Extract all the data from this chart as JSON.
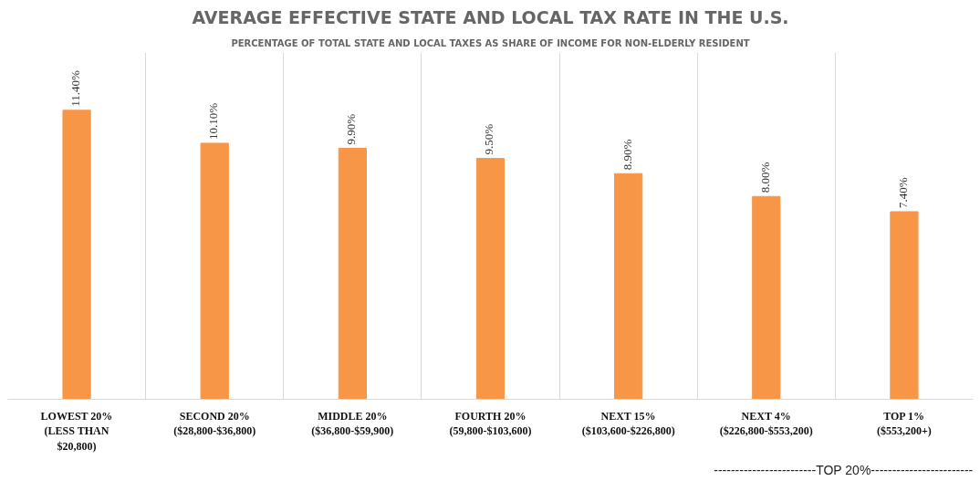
{
  "chart_data": {
    "type": "bar",
    "title": "AVERAGE EFFECTIVE STATE AND LOCAL TAX RATE IN THE U.S.",
    "subtitle": "PERCENTAGE OF TOTAL STATE AND LOCAL TAXES AS SHARE OF INCOME FOR NON-ELDERLY RESIDENT",
    "categories": [
      "LOWEST 20%\n(LESS THAN\n$20,800)",
      "SECOND 20%\n($28,800-$36,800)",
      "MIDDLE 20%\n($36,800-$59,900)",
      "FOURTH 20%\n(59,800-$103,600)",
      "NEXT 15%\n($103,600-$226,800)",
      "NEXT 4%\n($226,800-$553,200)",
      "TOP 1%\n($553,200+)"
    ],
    "values": [
      11.4,
      10.1,
      9.9,
      9.5,
      8.9,
      8.0,
      7.4
    ],
    "value_labels": [
      "11.40%",
      "10.10%",
      "9.90%",
      "9.50%",
      "8.90%",
      "8.00%",
      "7.40%"
    ],
    "color": "#f79646",
    "grid": "x",
    "annotations": [
      "------------------------TOP 20%------------------------"
    ]
  }
}
